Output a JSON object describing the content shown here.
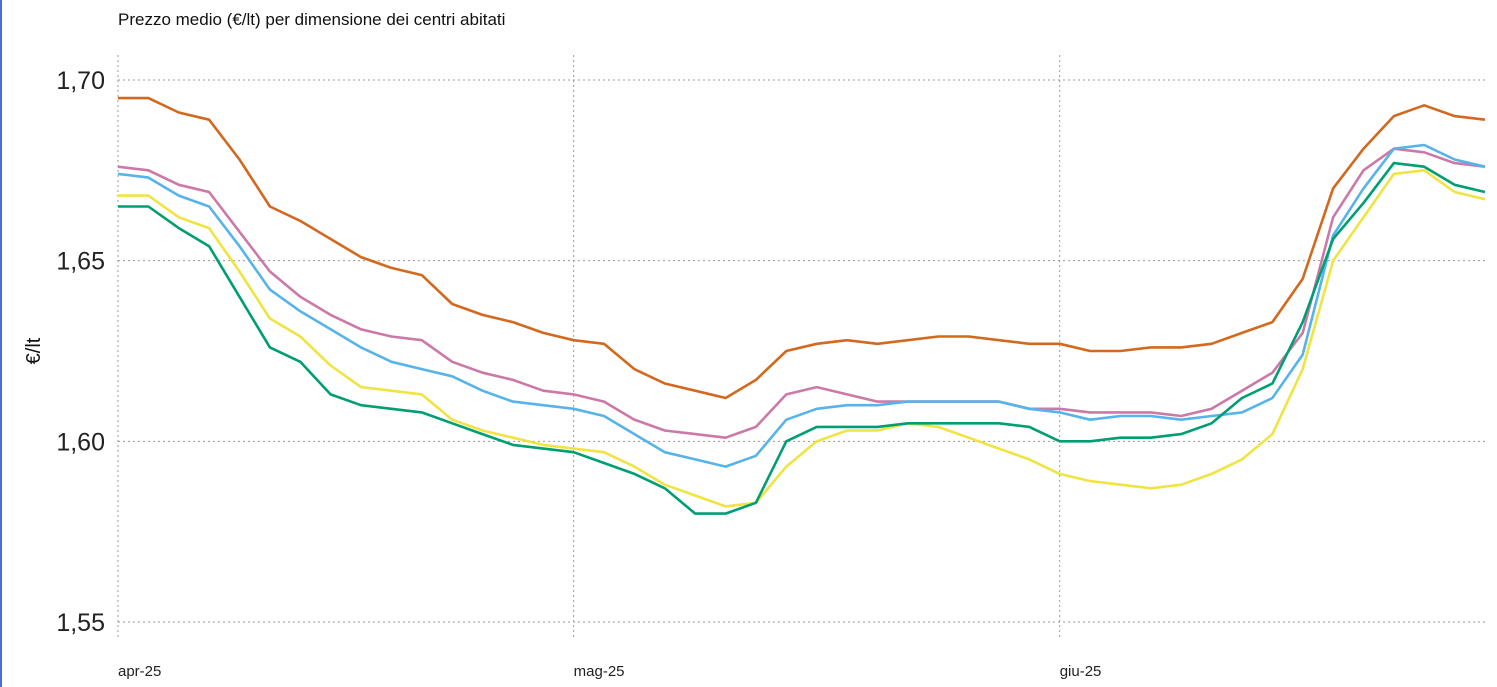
{
  "chart_data": {
    "type": "line",
    "title": "Prezzo medio (€/lt) per dimensione dei centri abitati",
    "ylabel": "€/lt",
    "xlabel": "",
    "x_ticks": [
      "apr-25",
      "mag-25",
      "giu-25"
    ],
    "y_ticks": [
      "1,55",
      "1,60",
      "1,65",
      "1,70"
    ],
    "y_tick_values": [
      1.55,
      1.6,
      1.65,
      1.7
    ],
    "ylim": [
      1.55,
      1.7
    ],
    "grid": true,
    "x": [
      "01/04",
      "03/04",
      "05/04",
      "07/04",
      "09/04",
      "11/04",
      "13/04",
      "15/04",
      "17/04",
      "19/04",
      "21/04",
      "23/04",
      "25/04",
      "27/04",
      "29/04",
      "01/05",
      "03/05",
      "05/05",
      "07/05",
      "09/05",
      "11/05",
      "13/05",
      "15/05",
      "17/05",
      "19/05",
      "21/05",
      "23/05",
      "25/05",
      "27/05",
      "29/05",
      "31/05",
      "02/06",
      "04/06",
      "06/06",
      "08/06",
      "10/06",
      "12/06",
      "14/06",
      "16/06",
      "18/06",
      "20/06",
      "22/06",
      "24/06",
      "26/06",
      "28/06",
      "30/06"
    ],
    "series": [
      {
        "color": "#d2691e",
        "values": [
          1.695,
          1.695,
          1.691,
          1.689,
          1.678,
          1.665,
          1.661,
          1.656,
          1.651,
          1.648,
          1.646,
          1.638,
          1.635,
          1.633,
          1.63,
          1.628,
          1.627,
          1.62,
          1.616,
          1.614,
          1.612,
          1.617,
          1.625,
          1.627,
          1.628,
          1.627,
          1.628,
          1.629,
          1.629,
          1.628,
          1.627,
          1.627,
          1.625,
          1.625,
          1.626,
          1.626,
          1.627,
          1.63,
          1.633,
          1.645,
          1.67,
          1.681,
          1.69,
          1.693,
          1.69,
          1.689
        ]
      },
      {
        "color": "#cc79a7",
        "values": [
          1.676,
          1.675,
          1.671,
          1.669,
          1.658,
          1.647,
          1.64,
          1.635,
          1.631,
          1.629,
          1.628,
          1.622,
          1.619,
          1.617,
          1.614,
          1.613,
          1.611,
          1.606,
          1.603,
          1.602,
          1.601,
          1.604,
          1.613,
          1.615,
          1.613,
          1.611,
          1.611,
          1.611,
          1.611,
          1.611,
          1.609,
          1.609,
          1.608,
          1.608,
          1.608,
          1.607,
          1.609,
          1.614,
          1.619,
          1.63,
          1.662,
          1.675,
          1.681,
          1.68,
          1.677,
          1.676
        ]
      },
      {
        "color": "#56b4e9",
        "values": [
          1.674,
          1.673,
          1.668,
          1.665,
          1.654,
          1.642,
          1.636,
          1.631,
          1.626,
          1.622,
          1.62,
          1.618,
          1.614,
          1.611,
          1.61,
          1.609,
          1.607,
          1.602,
          1.597,
          1.595,
          1.593,
          1.596,
          1.606,
          1.609,
          1.61,
          1.61,
          1.611,
          1.611,
          1.611,
          1.611,
          1.609,
          1.608,
          1.606,
          1.607,
          1.607,
          1.606,
          1.607,
          1.608,
          1.612,
          1.624,
          1.657,
          1.67,
          1.681,
          1.682,
          1.678,
          1.676
        ]
      },
      {
        "color": "#f0e442",
        "values": [
          1.668,
          1.668,
          1.662,
          1.659,
          1.647,
          1.634,
          1.629,
          1.621,
          1.615,
          1.614,
          1.613,
          1.606,
          1.603,
          1.601,
          1.599,
          1.598,
          1.597,
          1.593,
          1.588,
          1.585,
          1.582,
          1.583,
          1.593,
          1.6,
          1.603,
          1.603,
          1.605,
          1.604,
          1.601,
          1.598,
          1.595,
          1.591,
          1.589,
          1.588,
          1.587,
          1.588,
          1.591,
          1.595,
          1.602,
          1.62,
          1.65,
          1.662,
          1.674,
          1.675,
          1.669,
          1.667
        ]
      },
      {
        "color": "#009e73",
        "values": [
          1.665,
          1.665,
          1.659,
          1.654,
          1.64,
          1.626,
          1.622,
          1.613,
          1.61,
          1.609,
          1.608,
          1.605,
          1.602,
          1.599,
          1.598,
          1.597,
          1.594,
          1.591,
          1.587,
          1.58,
          1.58,
          1.583,
          1.6,
          1.604,
          1.604,
          1.604,
          1.605,
          1.605,
          1.605,
          1.605,
          1.604,
          1.6,
          1.6,
          1.601,
          1.601,
          1.602,
          1.605,
          1.612,
          1.616,
          1.633,
          1.656,
          1.666,
          1.677,
          1.676,
          1.671,
          1.669
        ]
      }
    ]
  }
}
